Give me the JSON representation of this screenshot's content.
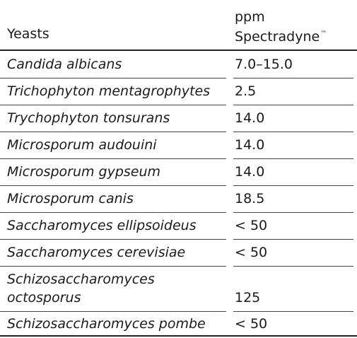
{
  "header": {
    "col1": "Yeasts",
    "col2_line1": "ppm",
    "col2_line2": "Spectradyne",
    "col2_tm": "™"
  },
  "rows": [
    {
      "name": "Candida albicans",
      "value": "7.0–15.0"
    },
    {
      "name": "Trichophyton mentagrophytes",
      "value": "2.5"
    },
    {
      "name": "Trychophyton tonsurans",
      "value": "14.0"
    },
    {
      "name": "Microsporum audouini",
      "value": "14.0"
    },
    {
      "name": "Microsporum gypseum",
      "value": "14.0"
    },
    {
      "name": "Microsporum canis",
      "value": "18.5"
    },
    {
      "name": "Saccharomyces ellipsoideus",
      "value": "< 50"
    },
    {
      "name": "Saccharomyces cerevisiae",
      "value": "< 50"
    },
    {
      "name": "Schizosaccharomyces octosporus",
      "value": "125"
    },
    {
      "name": "Schizosaccharomyces pombe",
      "value": "< 50"
    }
  ]
}
